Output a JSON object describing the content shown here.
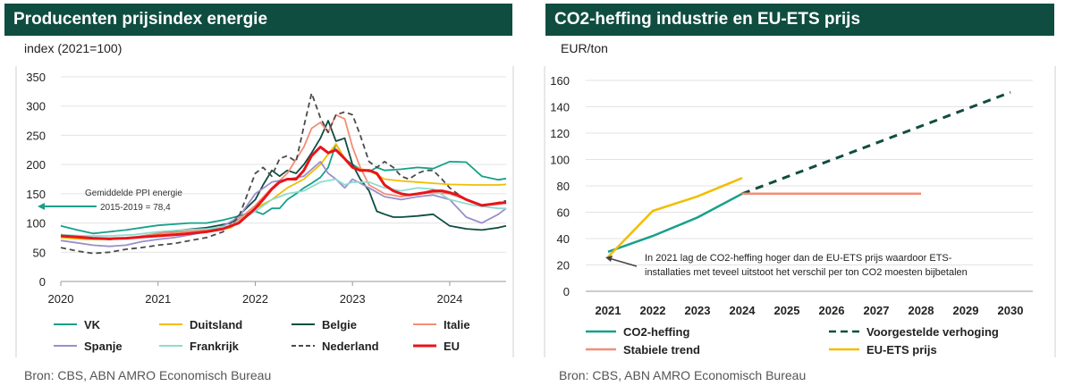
{
  "left": {
    "title": "Producenten prijsindex energie",
    "unit": "index (2021=100)",
    "source": "Bron: CBS, ABN AMRO Economisch Bureau",
    "annotation": [
      "Gemiddelde PPI energie",
      "2015-2019 = 78,4"
    ],
    "legend_order": [
      "VK",
      "Duitsland",
      "Belgie",
      "Italie",
      "Spanje",
      "Frankrijk",
      "Nederland",
      "EU"
    ]
  },
  "right": {
    "title": "CO2-heffing industrie en EU-ETS prijs",
    "unit": "EUR/ton",
    "source": "Bron: CBS, ABN AMRO Economisch Bureau",
    "annotation": [
      "In 2021 lag de CO2-heffing hoger dan de EU-ETS prijs waardoor ETS-",
      "installaties met teveel uitstoot het verschil per ton CO2 moesten bijbetalen"
    ],
    "legend_order": [
      "CO2-heffing",
      "Voorgestelde verhoging",
      "Stabiele trend",
      "EU-ETS prijs"
    ]
  },
  "chart_data": [
    {
      "type": "line",
      "title": "Producenten prijsindex energie",
      "ylabel": "index (2021=100)",
      "xlabel": "",
      "xlim": [
        2020.0,
        2024.58
      ],
      "ylim": [
        0,
        350
      ],
      "xticks": [
        2020,
        2021,
        2022,
        2023,
        2024
      ],
      "yticks": [
        0,
        50,
        100,
        150,
        200,
        250,
        300,
        350
      ],
      "grid": "horizontal",
      "legend": "bottom",
      "reference": {
        "y": 78.4,
        "label": "Gemiddelde PPI energie 2015-2019 = 78,4"
      },
      "series": [
        {
          "name": "VK",
          "color": "#16a08a",
          "dash": "solid",
          "x": [
            2020.0,
            2020.17,
            2020.33,
            2020.5,
            2020.67,
            2020.83,
            2021.0,
            2021.17,
            2021.33,
            2021.5,
            2021.67,
            2021.83,
            2022.0,
            2022.08,
            2022.17,
            2022.25,
            2022.33,
            2022.42,
            2022.5,
            2022.58,
            2022.67,
            2022.75,
            2022.83,
            2022.92,
            2023.0,
            2023.08,
            2023.17,
            2023.25,
            2023.33,
            2023.5,
            2023.67,
            2023.83,
            2024.0,
            2024.17,
            2024.33,
            2024.5,
            2024.58
          ],
          "y": [
            95,
            88,
            82,
            85,
            88,
            92,
            96,
            98,
            100,
            100,
            105,
            112,
            120,
            115,
            125,
            125,
            140,
            150,
            160,
            168,
            178,
            195,
            235,
            210,
            200,
            192,
            188,
            195,
            190,
            192,
            195,
            193,
            205,
            204,
            180,
            174,
            176
          ]
        },
        {
          "name": "Duitsland",
          "color": "#f2bd00",
          "dash": "solid",
          "x": [
            2020.0,
            2020.25,
            2020.5,
            2020.75,
            2021.0,
            2021.25,
            2021.5,
            2021.75,
            2022.0,
            2022.17,
            2022.33,
            2022.5,
            2022.67,
            2022.83,
            2022.92,
            2023.0,
            2023.17,
            2023.33,
            2023.5,
            2023.67,
            2023.83,
            2024.0,
            2024.25,
            2024.5,
            2024.58
          ],
          "y": [
            75,
            72,
            72,
            75,
            80,
            85,
            88,
            92,
            125,
            140,
            160,
            175,
            200,
            235,
            210,
            195,
            190,
            175,
            172,
            170,
            168,
            166,
            165,
            165,
            166
          ]
        },
        {
          "name": "Belgie",
          "color": "#0f4d40",
          "dash": "solid",
          "x": [
            2020.0,
            2020.25,
            2020.5,
            2020.75,
            2021.0,
            2021.25,
            2021.5,
            2021.75,
            2022.0,
            2022.08,
            2022.17,
            2022.25,
            2022.33,
            2022.42,
            2022.5,
            2022.58,
            2022.67,
            2022.75,
            2022.83,
            2022.92,
            2023.0,
            2023.08,
            2023.17,
            2023.25,
            2023.33,
            2023.42,
            2023.5,
            2023.67,
            2023.83,
            2024.0,
            2024.17,
            2024.33,
            2024.5,
            2024.58
          ],
          "y": [
            80,
            75,
            72,
            75,
            82,
            88,
            92,
            100,
            140,
            165,
            190,
            180,
            190,
            185,
            200,
            220,
            245,
            275,
            240,
            245,
            200,
            175,
            155,
            120,
            115,
            110,
            110,
            112,
            115,
            95,
            90,
            88,
            92,
            95
          ]
        },
        {
          "name": "Italie",
          "color": "#f28e76",
          "dash": "solid",
          "x": [
            2020.0,
            2020.25,
            2020.5,
            2020.75,
            2021.0,
            2021.25,
            2021.5,
            2021.75,
            2022.0,
            2022.17,
            2022.33,
            2022.5,
            2022.58,
            2022.67,
            2022.75,
            2022.83,
            2022.92,
            2023.0,
            2023.08,
            2023.17,
            2023.33,
            2023.5,
            2023.67,
            2023.83,
            2024.0,
            2024.17,
            2024.33,
            2024.5,
            2024.58
          ],
          "y": [
            78,
            75,
            72,
            75,
            82,
            85,
            88,
            95,
            130,
            160,
            185,
            230,
            262,
            272,
            255,
            285,
            278,
            230,
            195,
            165,
            150,
            145,
            150,
            152,
            150,
            140,
            130,
            132,
            135
          ]
        },
        {
          "name": "Spanje",
          "color": "#9a8fcc",
          "dash": "solid",
          "x": [
            2020.0,
            2020.17,
            2020.33,
            2020.5,
            2020.67,
            2020.83,
            2021.0,
            2021.17,
            2021.33,
            2021.5,
            2021.67,
            2021.83,
            2022.0,
            2022.17,
            2022.33,
            2022.5,
            2022.67,
            2022.75,
            2022.83,
            2022.92,
            2023.0,
            2023.17,
            2023.33,
            2023.5,
            2023.67,
            2023.83,
            2024.0,
            2024.17,
            2024.33,
            2024.5,
            2024.58
          ],
          "y": [
            70,
            66,
            62,
            60,
            62,
            68,
            72,
            75,
            80,
            85,
            95,
            110,
            150,
            170,
            175,
            180,
            205,
            185,
            175,
            160,
            175,
            160,
            145,
            140,
            145,
            148,
            140,
            110,
            100,
            115,
            125
          ]
        },
        {
          "name": "Frankrijk",
          "color": "#8fdbcf",
          "dash": "solid",
          "x": [
            2020.0,
            2020.25,
            2020.5,
            2020.75,
            2021.0,
            2021.25,
            2021.5,
            2021.75,
            2022.0,
            2022.17,
            2022.33,
            2022.5,
            2022.67,
            2022.83,
            2022.92,
            2023.0,
            2023.17,
            2023.33,
            2023.5,
            2023.67,
            2023.83,
            2024.0,
            2024.25,
            2024.5,
            2024.58
          ],
          "y": [
            80,
            78,
            78,
            80,
            85,
            88,
            90,
            95,
            120,
            140,
            150,
            155,
            170,
            175,
            165,
            170,
            170,
            160,
            155,
            160,
            158,
            140,
            130,
            125,
            125
          ]
        },
        {
          "name": "Nederland",
          "color": "#4a4a4a",
          "dash": "dashed",
          "x": [
            2020.0,
            2020.17,
            2020.33,
            2020.5,
            2020.67,
            2020.83,
            2021.0,
            2021.17,
            2021.33,
            2021.5,
            2021.67,
            2021.83,
            2022.0,
            2022.08,
            2022.17,
            2022.25,
            2022.33,
            2022.42,
            2022.5,
            2022.58,
            2022.67,
            2022.75,
            2022.83,
            2022.92,
            2023.0,
            2023.08,
            2023.17,
            2023.25,
            2023.33,
            2023.42,
            2023.5,
            2023.58,
            2023.67,
            2023.75,
            2023.83,
            2023.92,
            2024.0,
            2024.08,
            2024.17,
            2024.25,
            2024.33,
            2024.42,
            2024.5,
            2024.58
          ],
          "y": [
            58,
            52,
            48,
            50,
            55,
            58,
            62,
            65,
            70,
            75,
            85,
            110,
            185,
            195,
            180,
            210,
            215,
            205,
            265,
            322,
            280,
            255,
            285,
            290,
            285,
            250,
            205,
            195,
            205,
            195,
            180,
            175,
            185,
            190,
            190,
            175,
            160,
            150,
            140,
            135,
            130,
            132,
            135,
            138
          ]
        },
        {
          "name": "EU",
          "color": "#e8141b",
          "dash": "solid",
          "x": [
            2020.0,
            2020.17,
            2020.33,
            2020.5,
            2020.67,
            2020.83,
            2021.0,
            2021.17,
            2021.33,
            2021.5,
            2021.67,
            2021.83,
            2022.0,
            2022.08,
            2022.17,
            2022.25,
            2022.33,
            2022.42,
            2022.5,
            2022.58,
            2022.67,
            2022.75,
            2022.83,
            2022.92,
            2023.0,
            2023.08,
            2023.17,
            2023.25,
            2023.33,
            2023.42,
            2023.5,
            2023.58,
            2023.67,
            2023.75,
            2023.83,
            2023.92,
            2024.0,
            2024.08,
            2024.17,
            2024.25,
            2024.33,
            2024.42,
            2024.5,
            2024.58
          ],
          "y": [
            78,
            76,
            74,
            73,
            74,
            76,
            78,
            80,
            82,
            85,
            90,
            100,
            125,
            140,
            158,
            170,
            175,
            175,
            190,
            215,
            230,
            220,
            225,
            210,
            195,
            190,
            190,
            185,
            165,
            155,
            150,
            148,
            150,
            152,
            155,
            155,
            152,
            148,
            140,
            135,
            130,
            132,
            134,
            135
          ]
        }
      ]
    },
    {
      "type": "line",
      "title": "CO2-heffing industrie en EU-ETS prijs",
      "ylabel": "EUR/ton",
      "xlabel": "",
      "categories": [
        2021,
        2022,
        2023,
        2024,
        2025,
        2026,
        2027,
        2028,
        2029,
        2030
      ],
      "ylim": [
        0,
        160
      ],
      "yticks": [
        0,
        20,
        40,
        60,
        80,
        100,
        120,
        140,
        160
      ],
      "grid": "horizontal",
      "legend": "bottom",
      "series": [
        {
          "name": "CO2-heffing",
          "color": "#16a08a",
          "dash": "solid",
          "x": [
            2021,
            2022,
            2023,
            2024
          ],
          "y": [
            30,
            42,
            56,
            74
          ]
        },
        {
          "name": "Voorgestelde verhoging",
          "color": "#0f4d40",
          "dash": "dashed",
          "x": [
            2024,
            2030
          ],
          "y": [
            74,
            151
          ]
        },
        {
          "name": "Stabiele trend",
          "color": "#f28e76",
          "dash": "solid",
          "x": [
            2024,
            2028
          ],
          "y": [
            74,
            74
          ]
        },
        {
          "name": "EU-ETS prijs",
          "color": "#f2bd00",
          "dash": "solid",
          "x": [
            2021,
            2022,
            2023,
            2024
          ],
          "y": [
            26,
            61,
            72,
            86
          ]
        }
      ]
    }
  ]
}
